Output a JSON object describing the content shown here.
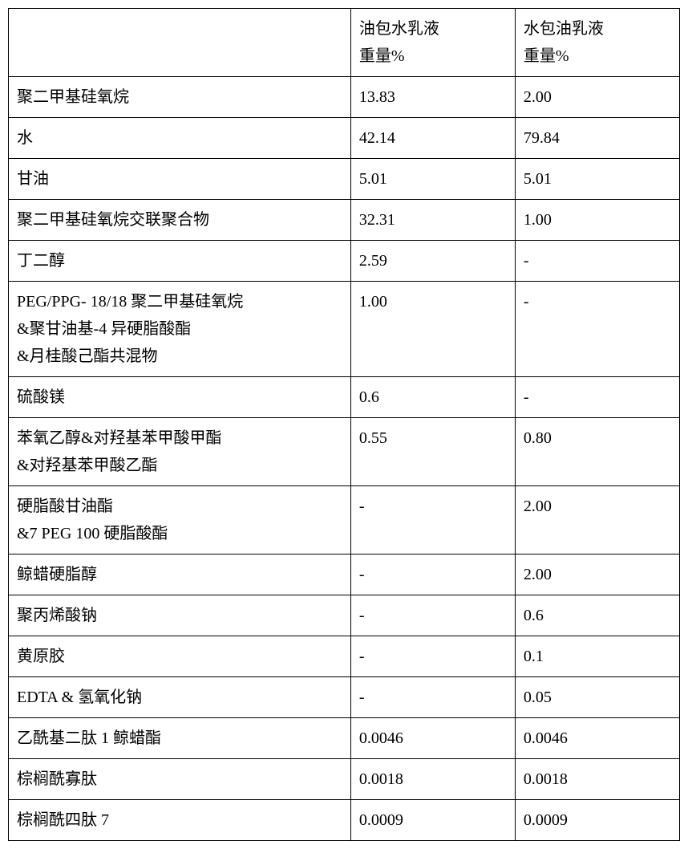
{
  "table": {
    "border_color": "#000000",
    "background_color": "#ffffff",
    "font_size": 20,
    "header": {
      "c1": "",
      "c2_line1": "油包水乳液",
      "c2_line2": "重量%",
      "c3_line1": "水包油乳液",
      "c3_line2": "重量%"
    },
    "rows": [
      {
        "c1": [
          "聚二甲基硅氧烷"
        ],
        "c2": "13.83",
        "c3": "2.00"
      },
      {
        "c1": [
          "水"
        ],
        "c2": "42.14",
        "c3": "79.84"
      },
      {
        "c1": [
          "甘油"
        ],
        "c2": "5.01",
        "c3": "5.01"
      },
      {
        "c1": [
          "聚二甲基硅氧烷交联聚合物"
        ],
        "c2": "32.31",
        "c3": "1.00"
      },
      {
        "c1": [
          "丁二醇"
        ],
        "c2": "2.59",
        "c3": "-"
      },
      {
        "c1": [
          "PEG/PPG- 18/18 聚二甲基硅氧烷",
          "&聚甘油基-4 异硬脂酸酯",
          "&月桂酸己酯共混物"
        ],
        "c2": "1.00",
        "c3": "-"
      },
      {
        "c1": [
          "硫酸镁"
        ],
        "c2": "0.6",
        "c3": "-"
      },
      {
        "c1": [
          "苯氧乙醇&对羟基苯甲酸甲酯",
          "&对羟基苯甲酸乙酯"
        ],
        "c2": "0.55",
        "c3": "0.80"
      },
      {
        "c1": [
          "硬脂酸甘油酯",
          "&7 PEG 100 硬脂酸酯"
        ],
        "c2": "-",
        "c3": "2.00"
      },
      {
        "c1": [
          "鲸蜡硬脂醇"
        ],
        "c2": "-",
        "c3": "2.00"
      },
      {
        "c1": [
          "聚丙烯酸钠"
        ],
        "c2": "-",
        "c3": "0.6"
      },
      {
        "c1": [
          "黄原胶"
        ],
        "c2": "-",
        "c3": "0.1"
      },
      {
        "c1": [
          "EDTA & 氢氧化钠"
        ],
        "c2": "-",
        "c3": "0.05"
      },
      {
        "c1": [
          "乙酰基二肽 1 鲸蜡酯"
        ],
        "c2": "0.0046",
        "c3": "0.0046"
      },
      {
        "c1": [
          "棕榈酰寡肽"
        ],
        "c2": "0.0018",
        "c3": "0.0018"
      },
      {
        "c1": [
          "棕榈酰四肽 7"
        ],
        "c2": "0.0009",
        "c3": "0.0009"
      }
    ]
  }
}
